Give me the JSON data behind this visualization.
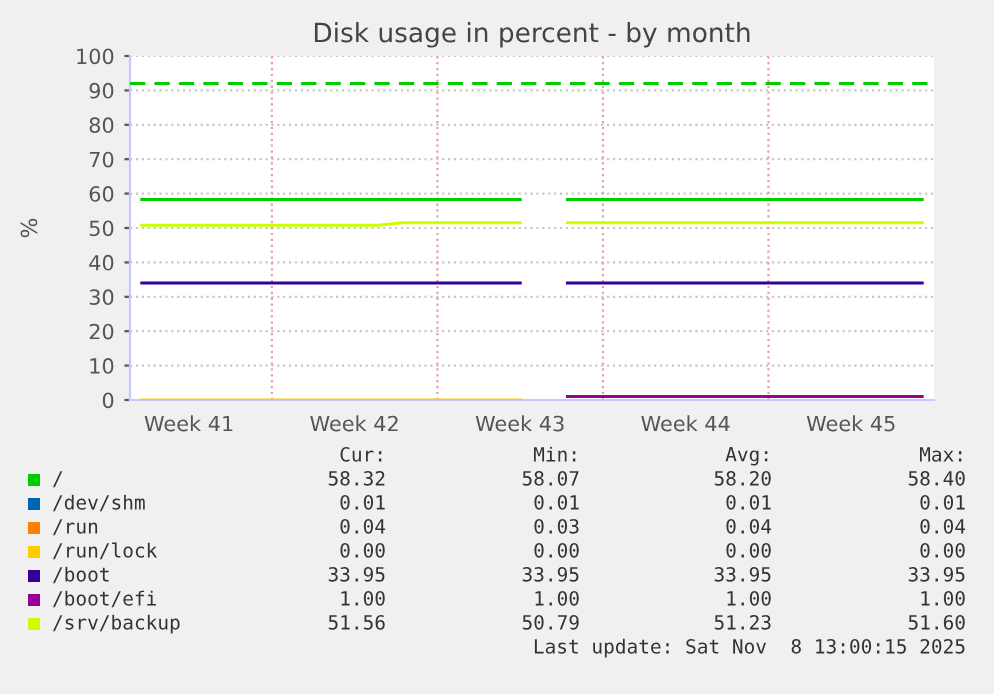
{
  "chart_data": {
    "type": "line",
    "title": "Disk usage in percent - by month",
    "ylabel": "%",
    "categories": [
      null,
      null,
      "Week 41",
      null,
      null,
      null,
      null,
      null,
      null,
      "Week 42",
      null,
      null,
      null,
      null,
      null,
      null,
      "Week 43",
      null,
      null,
      null,
      null,
      null,
      null,
      "Week 44",
      null,
      null,
      null,
      null,
      null,
      null,
      "Week 45",
      null,
      null,
      null
    ],
    "ylim": [
      0,
      100
    ],
    "yticks": [
      0,
      10,
      20,
      30,
      40,
      50,
      60,
      70,
      80,
      90,
      100
    ],
    "grid": true,
    "legend": "bottom",
    "line_style": "solid",
    "marker": "none",
    "series": [
      {
        "name": "/",
        "color": "#00cc00",
        "values": [
          58.3,
          58.3,
          58.3,
          58.3,
          58.3,
          58.3,
          58.3,
          58.3,
          58.3,
          58.3,
          58.3,
          58.3,
          58.3,
          58.3,
          58.3,
          58.3,
          58.3,
          null,
          58.3,
          58.3,
          58.3,
          58.3,
          58.3,
          58.3,
          58.3,
          58.3,
          58.3,
          58.3,
          58.3,
          58.3,
          58.3,
          58.3,
          58.3,
          58.3
        ]
      },
      {
        "name": "/dev/shm",
        "color": "#0066b3",
        "values": [
          null,
          null,
          null,
          null,
          null,
          null,
          null,
          null,
          null,
          null,
          null,
          null,
          null,
          null,
          null,
          null,
          null,
          null,
          null,
          null,
          null,
          null,
          null,
          null,
          null,
          null,
          null,
          null,
          null,
          null,
          null,
          null,
          null,
          null
        ]
      },
      {
        "name": "/run",
        "color": "#ff8000",
        "values": [
          null,
          null,
          null,
          null,
          null,
          null,
          null,
          null,
          null,
          null,
          null,
          null,
          null,
          null,
          null,
          null,
          null,
          null,
          null,
          null,
          null,
          null,
          null,
          null,
          null,
          null,
          null,
          null,
          null,
          null,
          null,
          null,
          null,
          null
        ]
      },
      {
        "name": "/run/lock",
        "color": "#ffcc00",
        "values": [
          0,
          0,
          0,
          0,
          0,
          0,
          0,
          0,
          0,
          0,
          0,
          0,
          0,
          0,
          0,
          0,
          0,
          null,
          null,
          null,
          null,
          null,
          null,
          null,
          null,
          null,
          null,
          null,
          null,
          null,
          null,
          null,
          null,
          null
        ]
      },
      {
        "name": "/boot",
        "color": "#330099",
        "values": [
          34,
          34,
          34,
          34,
          34,
          34,
          34,
          34,
          34,
          34,
          34,
          34,
          34,
          34,
          34,
          34,
          34,
          null,
          34,
          34,
          34,
          34,
          34,
          34,
          34,
          34,
          34,
          34,
          34,
          34,
          34,
          34,
          34,
          34
        ]
      },
      {
        "name": "/boot/efi",
        "color": "#990099",
        "values": [
          null,
          null,
          null,
          null,
          null,
          null,
          null,
          null,
          null,
          null,
          null,
          null,
          null,
          null,
          null,
          null,
          null,
          null,
          1,
          1,
          1,
          1,
          1,
          1,
          1,
          1,
          1,
          1,
          1,
          1,
          1,
          1,
          1,
          1
        ]
      },
      {
        "name": "/srv/backup",
        "color": "#ccff00",
        "values": [
          50.8,
          50.8,
          50.8,
          50.8,
          50.8,
          50.8,
          50.8,
          50.8,
          50.8,
          50.8,
          50.8,
          51.5,
          51.5,
          51.5,
          51.5,
          51.5,
          51.5,
          null,
          51.5,
          51.5,
          51.5,
          51.5,
          51.5,
          51.5,
          51.5,
          51.5,
          51.5,
          51.5,
          51.5,
          51.5,
          51.5,
          51.5,
          51.5,
          51.5
        ]
      }
    ],
    "ref_lines": [
      {
        "axis": "y",
        "value": 92,
        "color": "#00cc00",
        "line_style": "dashed"
      }
    ],
    "annotations": [
      "Cur:",
      "Min:",
      "Avg:",
      "Max:",
      "58.32",
      "58.07",
      "58.20",
      "58.40",
      "0.01",
      "0.01",
      "0.01",
      "0.01",
      "0.04",
      "0.03",
      "0.04",
      "0.04",
      "0.00",
      "0.00",
      "0.00",
      "0.00",
      "33.95",
      "33.95",
      "33.95",
      "33.95",
      "1.00",
      "1.00",
      "1.00",
      "1.00",
      "51.56",
      "50.79",
      "51.23",
      "51.60",
      "Last update: Sat Nov  8 13:00:15 2025"
    ]
  }
}
